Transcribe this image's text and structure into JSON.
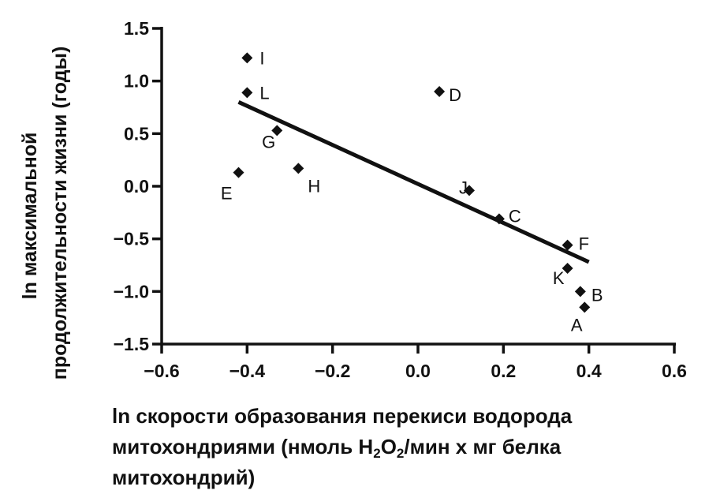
{
  "chart_data": {
    "type": "scatter",
    "title": "",
    "xlabel": {
      "line1": "ln скорости образования перекиси водорода",
      "line2_before": "митохондриями (нмоль H",
      "line2_sub1": "2",
      "line2_mid": "O",
      "line2_sub2": "2",
      "line2_after": "/мин х мг белка",
      "line3": "митохондрий)"
    },
    "ylabel": {
      "line1": "ln максимальной",
      "line2": "продолжительности жизни (годы)"
    },
    "xlim": [
      -0.6,
      0.6
    ],
    "ylim": [
      -1.5,
      1.5
    ],
    "xticks": [
      -0.6,
      -0.4,
      -0.2,
      0.0,
      0.2,
      0.4,
      0.6
    ],
    "xtick_labels": [
      "−0.6",
      "−0.4",
      "−0.2",
      "0.0",
      "0.2",
      "0.4",
      "0.6"
    ],
    "yticks": [
      -1.5,
      -1.0,
      -0.5,
      0.0,
      0.5,
      1.0,
      1.5
    ],
    "ytick_labels": [
      "−1.5",
      "−1.0",
      "−0.5",
      "0.0",
      "0.5",
      "1.0",
      "1.5"
    ],
    "grid": false,
    "points": [
      {
        "label": "I",
        "x": -0.4,
        "y": 1.22
      },
      {
        "label": "L",
        "x": -0.4,
        "y": 0.89
      },
      {
        "label": "G",
        "x": -0.33,
        "y": 0.53
      },
      {
        "label": "E",
        "x": -0.42,
        "y": 0.13
      },
      {
        "label": "H",
        "x": -0.28,
        "y": 0.17
      },
      {
        "label": "D",
        "x": 0.05,
        "y": 0.9
      },
      {
        "label": "J",
        "x": 0.12,
        "y": -0.04
      },
      {
        "label": "C",
        "x": 0.19,
        "y": -0.31
      },
      {
        "label": "F",
        "x": 0.35,
        "y": -0.56
      },
      {
        "label": "K",
        "x": 0.35,
        "y": -0.78
      },
      {
        "label": "B",
        "x": 0.38,
        "y": -1.0
      },
      {
        "label": "A",
        "x": 0.39,
        "y": -1.15
      }
    ],
    "regression_line": {
      "x": [
        -0.42,
        0.4
      ],
      "y": [
        0.8,
        -0.72
      ]
    }
  }
}
